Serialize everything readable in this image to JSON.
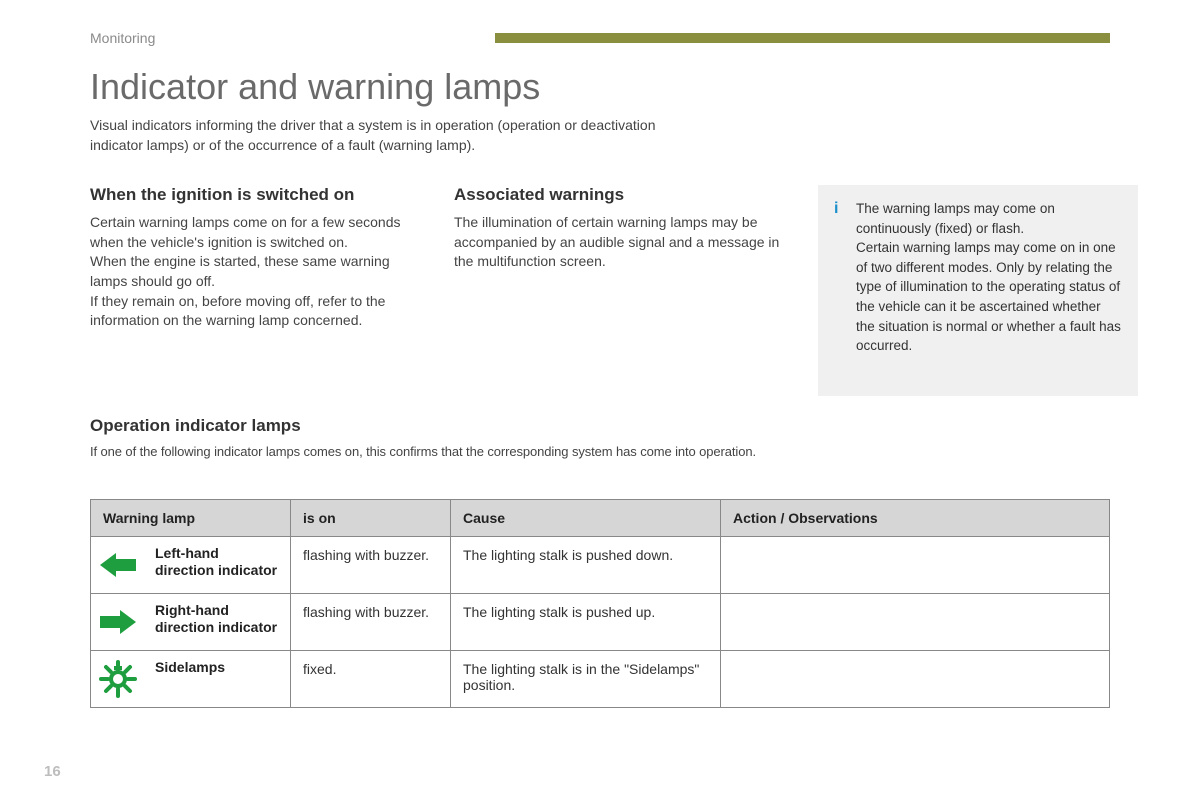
{
  "header": {
    "section": "Monitoring",
    "bar_color": "#8a8f3f"
  },
  "title": "Indicator and warning lamps",
  "intro": "Visual indicators informing the driver that a system is in operation (operation or deactivation indicator lamps) or of the occurrence of a fault (warning lamp).",
  "columns": {
    "left": {
      "heading": "When the ignition is switched on",
      "p1": "Certain warning lamps come on for a few seconds when the vehicle's ignition is switched on.",
      "p2": "When the engine is started, these same warning lamps should go off.",
      "p3": "If they remain on, before moving off, refer to the information on the warning lamp concerned."
    },
    "right": {
      "heading": "Associated warnings",
      "p1": "The illumination of certain warning lamps may be accompanied by an audible signal and a message in the multifunction screen."
    }
  },
  "info": {
    "icon": "i",
    "p1": "The warning lamps may come on continuously (fixed) or flash.",
    "p2": "Certain warning lamps may come on in one of two different modes. Only by relating the type of illumination to the operating status of the vehicle can it be ascertained whether the situation is normal or whether a fault has occurred."
  },
  "operation": {
    "heading": "Operation indicator lamps",
    "intro": "If one of the following indicator lamps comes on, this confirms that the corresponding system has come into operation."
  },
  "table": {
    "headers": {
      "col1": "Warning lamp",
      "col2": "is on",
      "col3": "Cause",
      "col4": "Action / Observations"
    },
    "rows": [
      {
        "icon": "arrow-left",
        "icon_color": "#1e9e3e",
        "label": "Left-hand direction indicator",
        "is_on": "flashing with buzzer.",
        "cause": "The lighting stalk is pushed down.",
        "action": ""
      },
      {
        "icon": "arrow-right",
        "icon_color": "#1e9e3e",
        "label": "Right-hand direction indicator",
        "is_on": "flashing with buzzer.",
        "cause": "The lighting stalk is pushed up.",
        "action": ""
      },
      {
        "icon": "sidelamp",
        "icon_color": "#1e9e3e",
        "label": "Sidelamps",
        "is_on": "fixed.",
        "cause": "The lighting stalk is in the \"Sidelamps\" position.",
        "action": ""
      }
    ]
  },
  "page_number": "16"
}
